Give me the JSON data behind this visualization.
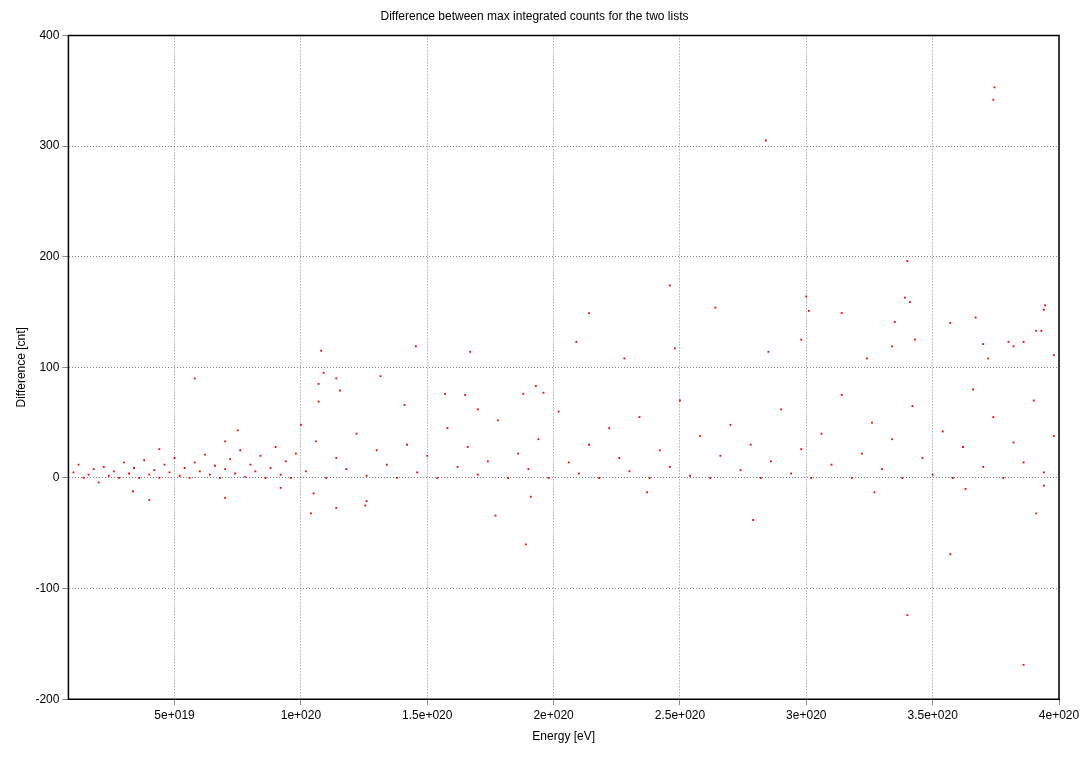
{
  "chart_data": {
    "type": "scatter",
    "title": "Difference between max integrated counts for the two lists",
    "xlabel": "Energy [eV]",
    "ylabel": "Difference [cnt]",
    "xlim": [
      8e+18,
      4e+20
    ],
    "xticks": [
      {
        "value": 5e+19,
        "label": "5e+019"
      },
      {
        "value": 1e+20,
        "label": "1e+020"
      },
      {
        "value": 1.5e+20,
        "label": "1.5e+020"
      },
      {
        "value": 2e+20,
        "label": "2e+020"
      },
      {
        "value": 2.5e+20,
        "label": "2.5e+020"
      },
      {
        "value": 3e+20,
        "label": "3e+020"
      },
      {
        "value": 3.5e+20,
        "label": "3.5e+020"
      },
      {
        "value": 4e+20,
        "label": "4e+020"
      }
    ],
    "ylim": [
      -200,
      400
    ],
    "yticks": [
      -200,
      -100,
      0,
      100,
      200,
      300,
      400
    ],
    "grid": true,
    "marker": "square",
    "series": [
      {
        "color": "#ff0000",
        "x": [
          1e+19,
          1.2e+19,
          1.4e+19,
          1.6e+19,
          1.8e+19,
          2e+19,
          2.2e+19,
          2.4e+19,
          2.6e+19,
          2.8e+19,
          3e+19,
          3.2e+19,
          3.4e+19,
          3.6e+19,
          3.8e+19,
          4e+19,
          4.2e+19,
          4.4e+19,
          4.6e+19,
          4.8e+19,
          5e+19,
          5.2e+19,
          5.4e+19,
          5.6e+19,
          5.8e+19,
          6e+19,
          6.2e+19,
          6.4e+19,
          6.6e+19,
          6.8e+19,
          7e+19,
          7.2e+19,
          7.4e+19,
          7.6e+19,
          7.8e+19,
          8e+19,
          8.2e+19,
          8.4e+19,
          8.6e+19,
          8.8e+19,
          9e+19,
          9.2e+19,
          9.4e+19,
          9.6e+19,
          9.8e+19,
          1.02e+20,
          1.06e+20,
          1.1e+20,
          1.14e+20,
          1.18e+20,
          1.22e+20,
          1.26e+20,
          1.3e+20,
          1.34e+20,
          1.38e+20,
          1.42e+20,
          1.46e+20,
          1.5e+20,
          1.54e+20,
          1.58e+20,
          1.62e+20,
          1.66e+20,
          1.7e+20,
          1.74e+20,
          1.78e+20,
          1.82e+20,
          1.86e+20,
          1.9e+20,
          1.94e+20,
          1.98e+20,
          2.02e+20,
          2.06e+20,
          2.1e+20,
          2.14e+20,
          2.18e+20,
          2.22e+20,
          2.26e+20,
          2.3e+20,
          2.34e+20,
          2.38e+20,
          2.42e+20,
          2.46e+20,
          2.5e+20,
          2.54e+20,
          2.58e+20,
          2.62e+20,
          2.66e+20,
          2.7e+20,
          2.74e+20,
          2.78e+20,
          2.82e+20,
          2.86e+20,
          2.9e+20,
          2.94e+20,
          2.98e+20,
          3.02e+20,
          3.06e+20,
          3.1e+20,
          3.14e+20,
          3.18e+20,
          3.22e+20,
          3.26e+20,
          3.3e+20,
          3.34e+20,
          3.38e+20,
          3.42e+20,
          3.46e+20,
          3.5e+20,
          3.54e+20,
          3.58e+20,
          3.62e+20,
          3.66e+20,
          3.7e+20,
          3.74e+20,
          3.78e+20,
          3.82e+20,
          3.86e+20,
          3.9e+20,
          3.94e+20,
          3.98e+20,
          1.08e+20,
          1.455e+20,
          1.67e+20,
          1.07e+20,
          1.07e+20,
          1.09e+20,
          1.14e+20,
          1.155e+20,
          1.315e+20,
          1.57e+20,
          1.65e+20,
          1.88e+20,
          1.93e+20,
          1.96e+20,
          1.7e+20,
          1.41e+20,
          7.5e+19,
          7e+19,
          4.4e+19,
          1e+20,
          5.8e+19,
          4e+19,
          3.35e+19,
          7e+19,
          1.04e+20,
          1.14e+20,
          1.255e+20,
          1.26e+20,
          9.2e+19,
          1.77e+20,
          1.91e+20,
          1.05e+20,
          3.745e+20,
          3.74e+20,
          2.84e+20,
          3.4e+20,
          3.39e+20,
          3.41e+20,
          3e+20,
          3.01e+20,
          2.46e+20,
          2.14e+20,
          2.64e+20,
          3.14e+20,
          3.945e+20,
          3.94e+20,
          3.57e+20,
          3.67e+20,
          3.35e+20,
          3.91e+20,
          3.93e+20,
          2.09e+20,
          2.48e+20,
          2.98e+20,
          3.43e+20,
          3.34e+20,
          3.7e+20,
          3.8e+20,
          3.82e+20,
          3.86e+20,
          3.98e+20,
          2.85e+20,
          3.24e+20,
          3.72e+20,
          2.28e+20,
          2.79e+20,
          3.91e+20,
          1.89e+20,
          3.4e+20,
          3.57e+20,
          3.86e+20,
          2.37e+20,
          3.27e+20,
          3.63e+20,
          3.94e+20
        ],
        "values": [
          5,
          12,
          0,
          3,
          8,
          -4,
          10,
          2,
          6,
          0,
          14,
          4,
          9,
          0,
          16,
          3,
          7,
          0,
          12,
          5,
          18,
          2,
          9,
          0,
          14,
          6,
          21,
          3,
          11,
          0,
          8,
          17,
          4,
          25,
          1,
          12,
          6,
          20,
          0,
          9,
          28,
          3,
          15,
          0,
          22,
          6,
          33,
          0,
          18,
          8,
          40,
          2,
          25,
          12,
          0,
          30,
          5,
          20,
          0,
          45,
          10,
          28,
          3,
          15,
          52,
          0,
          22,
          8,
          35,
          0,
          60,
          14,
          4,
          30,
          0,
          45,
          18,
          6,
          55,
          0,
          25,
          10,
          70,
          2,
          38,
          0,
          20,
          48,
          7,
          30,
          0,
          15,
          62,
          4,
          26,
          0,
          40,
          12,
          75,
          0,
          22,
          50,
          8,
          35,
          0,
          65,
          18,
          3,
          42,
          0,
          28,
          80,
          10,
          55,
          0,
          32,
          14,
          70,
          5,
          38,
          115,
          119,
          114,
          85,
          69,
          95,
          90,
          79,
          92,
          76,
          75,
          76,
          83,
          77,
          62,
          66,
          43,
          33,
          26,
          48,
          90,
          -20,
          -12,
          -18,
          -32,
          -27,
          -25,
          -21,
          -9,
          -34,
          -17,
          -14,
          353,
          342,
          305,
          196,
          163,
          159,
          164,
          151,
          174,
          149,
          154,
          149,
          156,
          152,
          140,
          145,
          141,
          133,
          133,
          123,
          117,
          125,
          125,
          119,
          121,
          123,
          119,
          123,
          111,
          114,
          108,
          108,
          108,
          -38,
          -32,
          -60,
          -124,
          -69,
          -169,
          -13,
          -13,
          -10,
          -7
        ]
      }
    ]
  }
}
